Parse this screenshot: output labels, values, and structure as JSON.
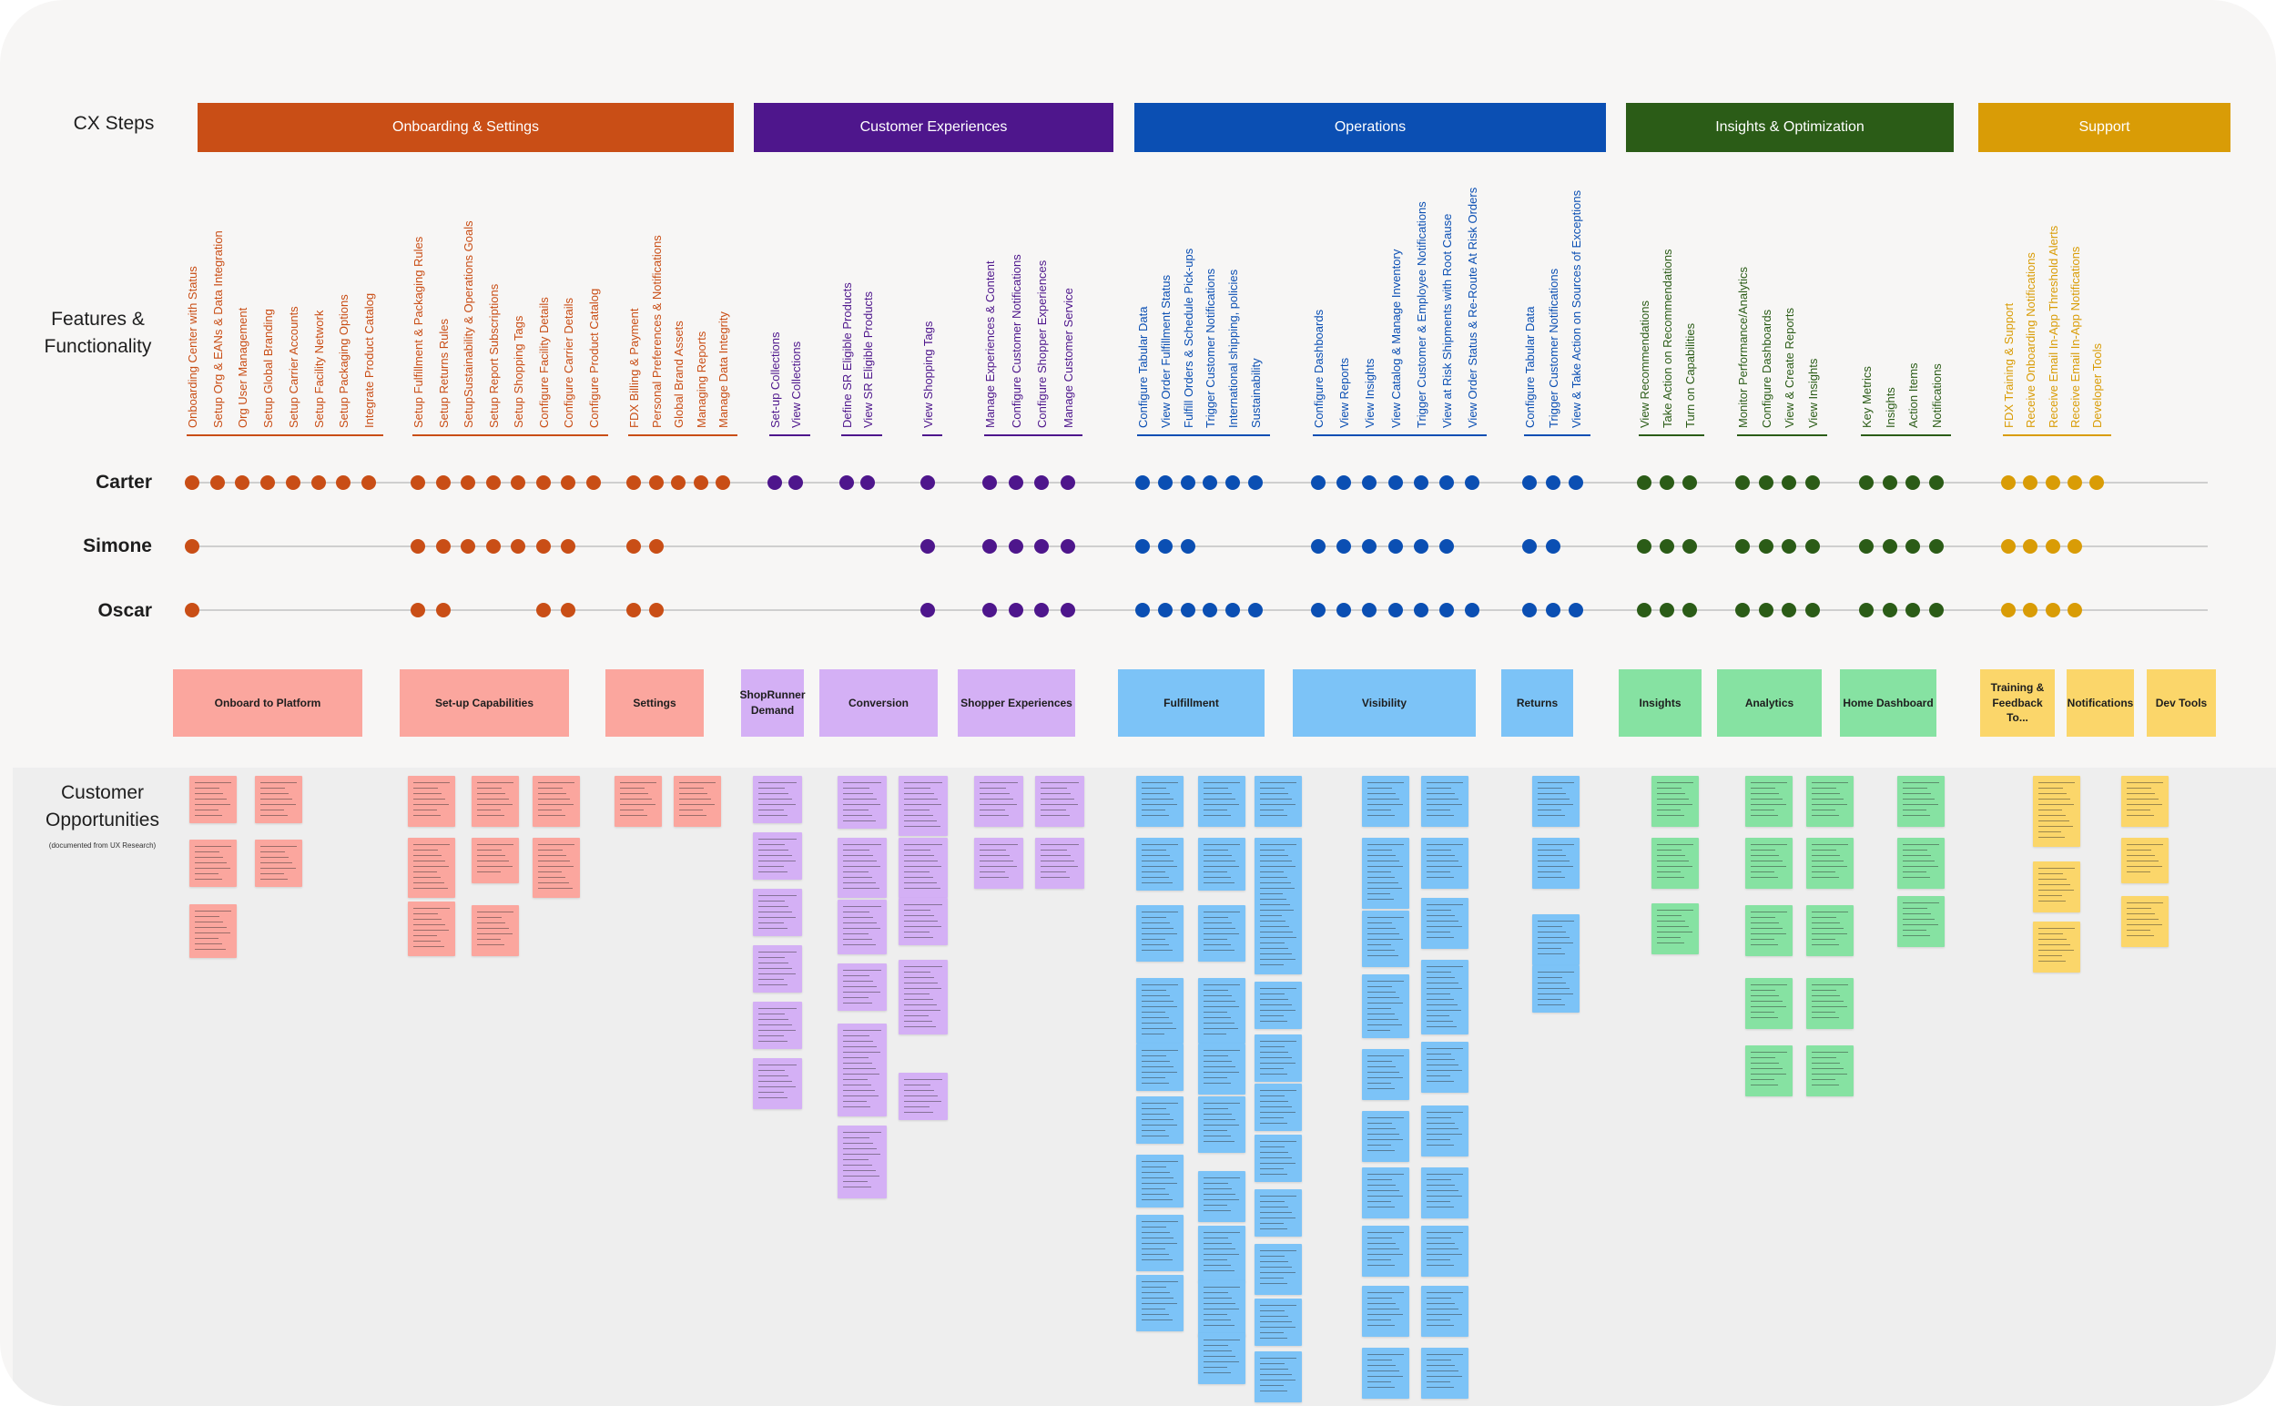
{
  "row_labels": {
    "cx_steps": "CX Steps",
    "features_line1": "Features &",
    "features_line2": "Functionality",
    "opportunities_line1": "Customer",
    "opportunities_line2": "Opportunities",
    "opportunities_note": "(documented from UX Research)"
  },
  "personas": [
    "Carter",
    "Simone",
    "Oscar"
  ],
  "colors": {
    "onboarding": "#c94e16",
    "onboarding_light": "#fba69e",
    "experiences": "#4e168c",
    "experiences_light": "#d4b0f5",
    "operations": "#0b4fb3",
    "operations_light": "#7cc3f7",
    "insights": "#2b5c17",
    "insights_light": "#86e2a2",
    "support": "#d99c06",
    "support_light": "#fbd66a",
    "canvas": "#f7f6f5",
    "track": "#cfcfcf"
  },
  "cx_steps": [
    {
      "label": "Onboarding & Settings",
      "color": "#c94e16"
    },
    {
      "label": "Customer Experiences",
      "color": "#4e168c"
    },
    {
      "label": "Operations",
      "color": "#0b4fb3"
    },
    {
      "label": "Insights & Optimization",
      "color": "#2b5c17"
    },
    {
      "label": "Support",
      "color": "#d99c06"
    }
  ],
  "feature_groups": [
    {
      "step": 0,
      "items": [
        "Onboarding Center with Status",
        "Setup Org & EANs & Data Integration",
        "Org User Management",
        "Setup Global Branding",
        "Setup Carrier Accounts",
        "Setup Facility Network",
        "Setup Packaging Options",
        "Integrate Product Catalog"
      ],
      "carter": [
        1,
        1,
        1,
        1,
        1,
        1,
        1,
        1
      ],
      "simone": [
        1,
        0,
        0,
        0,
        0,
        0,
        0,
        0
      ],
      "oscar": [
        1,
        0,
        0,
        0,
        0,
        0,
        0,
        0
      ]
    },
    {
      "step": 0,
      "items": [
        "Setup Fulfillment & Packaging Rules",
        "Setup Returns Rules",
        "SetupSustainability & Operations Goals",
        "Setup Report Subscriptions",
        "Setup Shopping Tags",
        "Configure Facility Details",
        "Configure Carrier Details",
        "Configure Product Catalog"
      ],
      "carter": [
        1,
        1,
        1,
        1,
        1,
        1,
        1,
        1
      ],
      "simone": [
        1,
        1,
        1,
        1,
        1,
        1,
        1,
        0
      ],
      "oscar": [
        1,
        1,
        0,
        0,
        0,
        1,
        1,
        0
      ]
    },
    {
      "step": 0,
      "items": [
        "FDX Billing & Payment",
        "Personal Preferences & Notifications",
        "Global Brand Assets",
        "Managing Reports",
        "Manage Data Integrity"
      ],
      "carter": [
        1,
        1,
        1,
        1,
        1
      ],
      "simone": [
        1,
        1,
        0,
        0,
        0
      ],
      "oscar": [
        1,
        1,
        0,
        0,
        0
      ]
    },
    {
      "step": 1,
      "items": [
        "Set-up Collections",
        "View Collections"
      ],
      "carter": [
        1,
        1
      ],
      "simone": [
        0,
        0
      ],
      "oscar": [
        0,
        0
      ]
    },
    {
      "step": 1,
      "items": [
        "Define SR Eligible Products",
        "View SR Eligible Products"
      ],
      "carter": [
        1,
        1
      ],
      "simone": [
        0,
        0
      ],
      "oscar": [
        0,
        0
      ]
    },
    {
      "step": 1,
      "items": [
        "View Shopping Tags"
      ],
      "carter": [
        1
      ],
      "simone": [
        1
      ],
      "oscar": [
        1
      ]
    },
    {
      "step": 1,
      "items": [
        "Manage Experiences & Content",
        "Configure Customer Notifications",
        "Configure Shopper Experiences",
        "Manage Customer Service"
      ],
      "carter": [
        1,
        1,
        1,
        1
      ],
      "simone": [
        1,
        1,
        1,
        1
      ],
      "oscar": [
        1,
        1,
        1,
        1
      ]
    },
    {
      "step": 2,
      "items": [
        "Configure Tabular Data",
        "View Order Fulfillment Status",
        "Fulfill Orders & Schedule Pick-ups",
        "Trigger Customer Notifications",
        "International shipping, policies",
        "Sustainability"
      ],
      "carter": [
        1,
        1,
        1,
        1,
        1,
        1
      ],
      "simone": [
        1,
        1,
        1,
        0,
        0,
        0
      ],
      "oscar": [
        1,
        1,
        1,
        1,
        1,
        1
      ]
    },
    {
      "step": 2,
      "items": [
        "Configure Dashboards",
        "View Reports",
        "View Insights",
        "View Catalog & Manage Inventory",
        "Trigger Customer & Employee Notifications",
        "View at Risk Shipments with Root Cause",
        "View Order Status & Re-Route At Risk Orders"
      ],
      "carter": [
        1,
        1,
        1,
        1,
        1,
        1,
        1
      ],
      "simone": [
        1,
        1,
        1,
        1,
        1,
        1,
        0
      ],
      "oscar": [
        1,
        1,
        1,
        1,
        1,
        1,
        1
      ]
    },
    {
      "step": 2,
      "items": [
        "Configure Tabular Data",
        "Trigger Customer Notifications",
        "View & Take Action on Sources of Exceptions"
      ],
      "carter": [
        1,
        1,
        1
      ],
      "simone": [
        1,
        1,
        0
      ],
      "oscar": [
        1,
        1,
        1
      ]
    },
    {
      "step": 3,
      "items": [
        "View Recommendations",
        "Take Action on Recommendations",
        "Turn on Capabilities"
      ],
      "carter": [
        1,
        1,
        1
      ],
      "simone": [
        1,
        1,
        1
      ],
      "oscar": [
        1,
        1,
        1
      ]
    },
    {
      "step": 3,
      "items": [
        "Monitor Performance/Analytics",
        "Configure Dashboards",
        "View & Create Reports",
        "View Insights"
      ],
      "carter": [
        1,
        1,
        1,
        1
      ],
      "simone": [
        1,
        1,
        1,
        1
      ],
      "oscar": [
        1,
        1,
        1,
        1
      ]
    },
    {
      "step": 3,
      "items": [
        "Key Metrics",
        "Insights",
        "Action Items",
        "Notifications"
      ],
      "carter": [
        1,
        1,
        1,
        1
      ],
      "simone": [
        1,
        1,
        1,
        1
      ],
      "oscar": [
        1,
        1,
        1,
        1
      ]
    },
    {
      "step": 4,
      "items": [
        "FDX Training & Support",
        "Receive Onboarding Notifications",
        "Receive Email In-App Threshold Alerts",
        "Receive Email In-App Notifications",
        "Developer Tools"
      ],
      "carter": [
        1,
        1,
        1,
        1,
        1
      ],
      "simone": [
        1,
        1,
        1,
        1,
        0
      ],
      "oscar": [
        1,
        1,
        1,
        1,
        0
      ]
    }
  ],
  "categories": [
    {
      "label": "Onboard to Platform",
      "step": 0
    },
    {
      "label": "Set-up Capabilities",
      "step": 0
    },
    {
      "label": "Settings",
      "step": 0
    },
    {
      "label": "ShopRunner Demand",
      "step": 1
    },
    {
      "label": "Conversion",
      "step": 1
    },
    {
      "label": "Shopper Experiences",
      "step": 1
    },
    {
      "label": "Fulfillment",
      "step": 2
    },
    {
      "label": "Visibility",
      "step": 2
    },
    {
      "label": "Returns",
      "step": 2
    },
    {
      "label": "Insights",
      "step": 3
    },
    {
      "label": "Analytics",
      "step": 3
    },
    {
      "label": "Home Dashboard",
      "step": 3
    },
    {
      "label": "Training & Feedback To...",
      "step": 4
    },
    {
      "label": "Notifications",
      "step": 4
    },
    {
      "label": "Dev Tools",
      "step": 4
    }
  ]
}
